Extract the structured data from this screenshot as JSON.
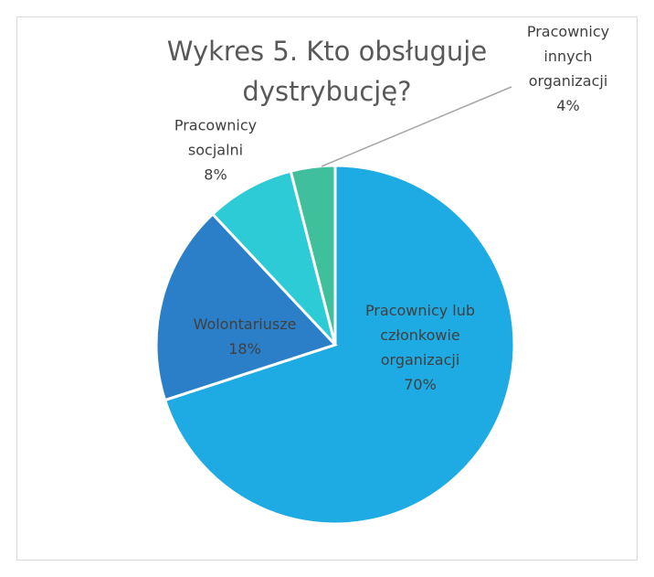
{
  "chart_data": {
    "type": "pie",
    "title": "Wykres 5. Kto obsługuje dystrybucję?",
    "categories": [
      "Pracownicy lub członkowie organizacji",
      "Wolontariusze",
      "Pracownicy socjalni",
      "Pracownicy innych organizacji"
    ],
    "values": [
      70,
      18,
      8,
      4
    ],
    "value_labels": [
      "70%",
      "18%",
      "8%",
      "4%"
    ],
    "colors": [
      "#1eaae2",
      "#2b7fc9",
      "#2ccbd6",
      "#3fbf9b"
    ]
  }
}
